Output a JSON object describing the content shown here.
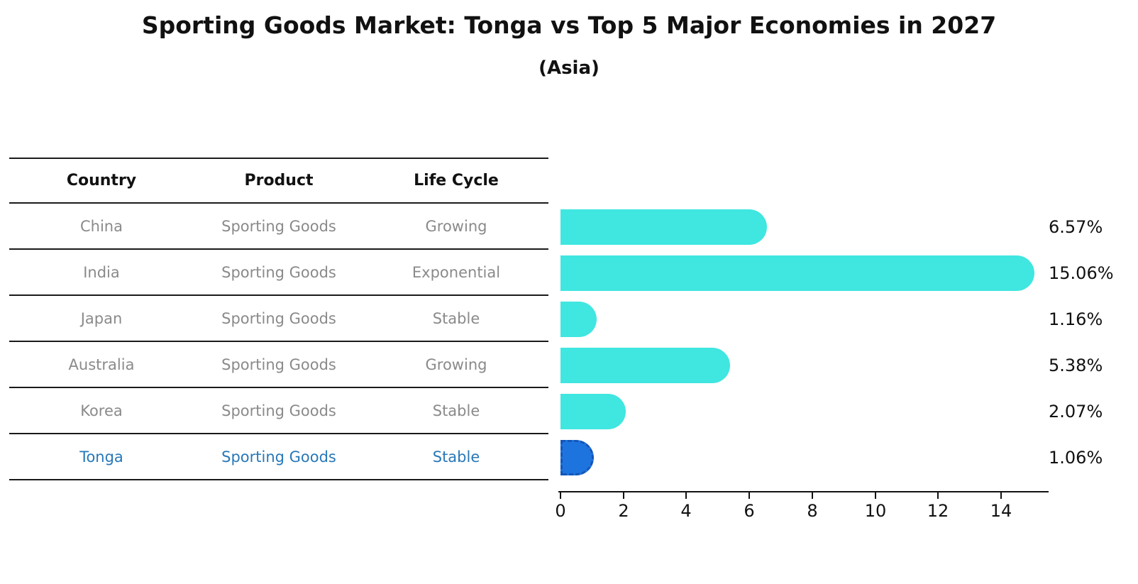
{
  "page": {
    "title": "Sporting Goods Market: Tonga vs Top 5 Major Economies in 2027",
    "subtitle": "(Asia)"
  },
  "table": {
    "columns": [
      "Country",
      "Product",
      "Life Cycle"
    ],
    "rows": [
      {
        "country": "China",
        "product": "Sporting Goods",
        "life_cycle": "Growing",
        "highlight": false
      },
      {
        "country": "India",
        "product": "Sporting Goods",
        "life_cycle": "Exponential",
        "highlight": false
      },
      {
        "country": "Japan",
        "product": "Sporting Goods",
        "life_cycle": "Stable",
        "highlight": false
      },
      {
        "country": "Australia",
        "product": "Sporting Goods",
        "life_cycle": "Growing",
        "highlight": false
      },
      {
        "country": "Korea",
        "product": "Sporting Goods",
        "life_cycle": "Stable",
        "highlight": false
      },
      {
        "country": "Tonga",
        "product": "Sporting Goods",
        "life_cycle": "Stable",
        "highlight": true
      }
    ]
  },
  "chart_data": {
    "type": "bar",
    "orientation": "horizontal",
    "title": "Sporting Goods Market: Tonga vs Top 5 Major Economies in 2027",
    "subtitle": "(Asia)",
    "categories": [
      "China",
      "India",
      "Japan",
      "Australia",
      "Korea",
      "Tonga"
    ],
    "values": [
      6.57,
      15.06,
      1.16,
      5.38,
      2.07,
      1.06
    ],
    "value_labels": [
      "6.57%",
      "15.06%",
      "1.16%",
      "5.38%",
      "2.07%",
      "1.06%"
    ],
    "xlim": [
      0,
      15.4
    ],
    "x_ticks": [
      0,
      2,
      4,
      6,
      8,
      10,
      12,
      14
    ],
    "grid": false,
    "legend": "none",
    "bar_color": "#40e6e0",
    "highlight_index": 5,
    "highlight_fill": "#1e74de",
    "highlight_border": "#1456b8",
    "highlight_text_color": "#2878b8"
  }
}
